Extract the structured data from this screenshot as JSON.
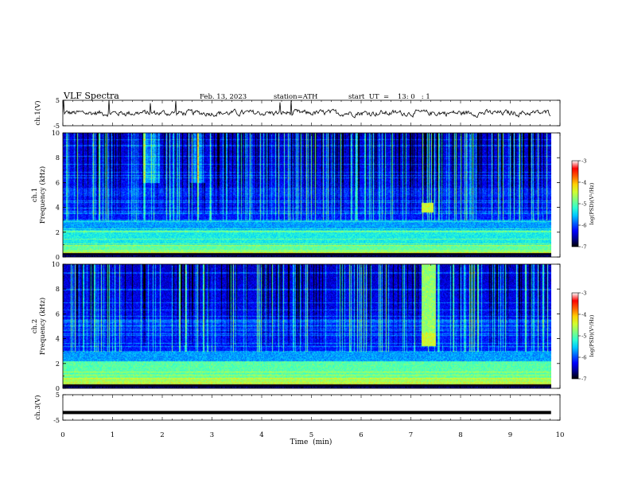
{
  "header": {
    "title": "VLF  Spectra",
    "date": "Feb. 13, 2023",
    "station": "station=ATH",
    "start": "start  UT  =    13: 0   : 1"
  },
  "chart_data": [
    {
      "type": "line",
      "name": "ch1-waveform",
      "ylabel": "ch.1(V)",
      "ylim": [
        -5,
        5
      ],
      "yticks": [
        "5",
        "-5"
      ],
      "xlim": [
        0,
        10
      ],
      "baseline": 0
    },
    {
      "type": "heatmap",
      "name": "ch1-spectrogram",
      "ylabel": "ch.1\nFrequency (kHz)",
      "ylabel_line1": "ch.1",
      "ylabel_line2": "Frequency (kHz)",
      "ylim": [
        0,
        10
      ],
      "yticks": [
        "0",
        "2",
        "4",
        "6",
        "8",
        "10"
      ],
      "xlim": [
        0,
        10
      ],
      "colorbar": {
        "label": "log(PSD)(V²/Hz)",
        "range": [
          -7,
          -3
        ],
        "ticks": [
          "-3",
          "-4",
          "-5",
          "-6",
          "-7"
        ]
      },
      "annotations": [
        {
          "kind": "burst",
          "t_start": 7.2,
          "t_end": 7.45,
          "f_low": 3.6,
          "f_high": 4.4
        }
      ]
    },
    {
      "type": "heatmap",
      "name": "ch2-spectrogram",
      "ylabel_line1": "ch.2",
      "ylabel_line2": "Frequency (kHz)",
      "ylim": [
        0,
        10
      ],
      "yticks": [
        "0",
        "2",
        "4",
        "6",
        "8",
        "10"
      ],
      "xlim": [
        0,
        10
      ],
      "colorbar": {
        "label": "log(PSD)(V²/Hz)",
        "range": [
          -7,
          -3
        ],
        "ticks": [
          "-3",
          "-4",
          "-5",
          "-6",
          "-7"
        ]
      },
      "annotations": [
        {
          "kind": "burst",
          "t_start": 7.2,
          "t_end": 7.5,
          "f_low": 3.4,
          "f_high": 10
        }
      ]
    },
    {
      "type": "line",
      "name": "ch3-waveform",
      "ylabel": "ch.3(V)",
      "ylim": [
        -5,
        5
      ],
      "yticks": [
        "5",
        "-5"
      ],
      "xlim": [
        0,
        10
      ],
      "baseline": -2
    }
  ],
  "xaxis": {
    "label": "Time  (min)",
    "ticks": [
      "0",
      "1",
      "2",
      "3",
      "4",
      "5",
      "6",
      "7",
      "8",
      "9",
      "10"
    ],
    "data_end": 9.82
  },
  "colors": {
    "colormap": [
      "#000000",
      "#00008f",
      "#0000ff",
      "#0060ff",
      "#00c8ff",
      "#30ffd0",
      "#80ff80",
      "#d0ff30",
      "#ffd000",
      "#ff6000",
      "#ff0000",
      "#ffffff"
    ]
  }
}
